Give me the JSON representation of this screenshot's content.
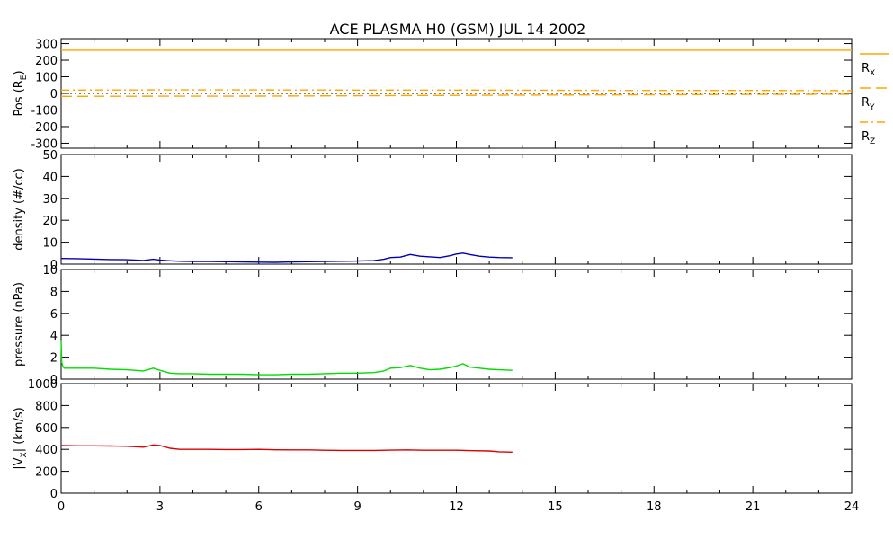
{
  "chart_data": {
    "title": "ACE PLASMA H0 (GSM)   JUL 14 2002",
    "type": "line",
    "x_axis": {
      "range": [
        0,
        24
      ],
      "ticks": [
        0,
        3,
        6,
        9,
        12,
        15,
        18,
        21,
        24
      ],
      "tick_labels": [
        "0",
        "3",
        "6",
        "9",
        "12",
        "15",
        "18",
        "21",
        "24"
      ],
      "minor_step": 1
    },
    "panels": [
      {
        "id": "pos",
        "ylabel": "Pos (R",
        "ylabel_sub": "E",
        "ylabel_end": ")",
        "ylim": [
          -330,
          330
        ],
        "yticks": [
          -300,
          -200,
          -100,
          0,
          100,
          200,
          300
        ],
        "ytick_labels": [
          "-300",
          "-200",
          "-100",
          "0",
          "100",
          "200",
          "300"
        ],
        "zero_line": true,
        "series": [
          {
            "name": "R",
            "sub": "X",
            "color": "#FFA500",
            "dash": "solid",
            "x": [
              0,
              24
            ],
            "y": [
              260,
              260
            ]
          },
          {
            "name": "R",
            "sub": "Y",
            "color": "#FFA500",
            "dash": "long-dash",
            "x": [
              0,
              3,
              6,
              9,
              12,
              15,
              18,
              21,
              24
            ],
            "y": [
              -18,
              -17,
              -16,
              -14,
              -12,
              -10,
              -8,
              -6,
              -5
            ]
          },
          {
            "name": "R",
            "sub": "Z",
            "color": "#FFA500",
            "dash": "dash-dot",
            "x": [
              0,
              3,
              6,
              9,
              12,
              15,
              18,
              21,
              24
            ],
            "y": [
              20,
              21,
              21,
              20,
              20,
              19,
              18,
              18,
              17
            ]
          }
        ]
      },
      {
        "id": "density",
        "ylabel": "density (#/cc)",
        "ylim": [
          0,
          50
        ],
        "yticks": [
          0,
          10,
          20,
          30,
          40,
          50
        ],
        "ytick_labels": [
          "0",
          "10",
          "20",
          "30",
          "40",
          "50"
        ],
        "series": [
          {
            "color": "#0000B0",
            "x": [
              0,
              0.5,
              1,
              1.5,
              2,
              2.5,
              2.8,
              3,
              3.3,
              3.6,
              4,
              4.5,
              5,
              5.5,
              6,
              6.5,
              7,
              7.5,
              8,
              8.5,
              9,
              9.5,
              9.8,
              10,
              10.3,
              10.6,
              10.9,
              11.2,
              11.5,
              11.8,
              12,
              12.2,
              12.4,
              12.7,
              13,
              13.3,
              13.7
            ],
            "y": [
              2.6,
              2.5,
              2.3,
              2.1,
              2.0,
              1.7,
              2.2,
              1.8,
              1.5,
              1.3,
              1.2,
              1.2,
              1.1,
              1.0,
              0.9,
              0.8,
              1.0,
              1.1,
              1.2,
              1.3,
              1.4,
              1.6,
              2.2,
              3.0,
              3.2,
              4.4,
              3.6,
              3.3,
              3.0,
              3.8,
              4.6,
              5.0,
              4.4,
              3.6,
              3.2,
              3.0,
              2.9
            ]
          }
        ]
      },
      {
        "id": "pressure",
        "ylabel": "pressure (nPa)",
        "ylim": [
          0,
          10
        ],
        "yticks": [
          0,
          2,
          4,
          6,
          8,
          10
        ],
        "ytick_labels": [
          "0",
          "2",
          "4",
          "6",
          "8",
          "10"
        ],
        "series": [
          {
            "color": "#00DD00",
            "x": [
              0,
              0.02,
              0.06,
              0.1,
              0.5,
              1,
              1.5,
              2,
              2.5,
              2.8,
              3,
              3.3,
              3.6,
              4,
              4.5,
              5,
              5.5,
              6,
              6.5,
              7,
              7.5,
              8,
              8.5,
              9,
              9.5,
              9.8,
              10,
              10.3,
              10.6,
              10.9,
              11.2,
              11.5,
              11.8,
              12,
              12.2,
              12.4,
              12.7,
              13,
              13.3,
              13.7
            ],
            "y": [
              3.5,
              1.5,
              1.1,
              1.0,
              1.0,
              1.0,
              0.9,
              0.85,
              0.75,
              1.0,
              0.8,
              0.55,
              0.5,
              0.5,
              0.45,
              0.45,
              0.45,
              0.4,
              0.4,
              0.45,
              0.45,
              0.5,
              0.55,
              0.55,
              0.6,
              0.75,
              1.0,
              1.05,
              1.25,
              1.0,
              0.85,
              0.9,
              1.05,
              1.2,
              1.4,
              1.1,
              1.0,
              0.9,
              0.85,
              0.8
            ]
          }
        ]
      },
      {
        "id": "vx",
        "ylabel": "|V",
        "ylabel_sub": "X",
        "ylabel_end": "| (km/s)",
        "ylim": [
          0,
          1000
        ],
        "yticks": [
          0,
          200,
          400,
          600,
          800,
          1000
        ],
        "ytick_labels": [
          "0",
          "200",
          "400",
          "600",
          "800",
          "1000"
        ],
        "series": [
          {
            "color": "#DD0000",
            "x": [
              0,
              0.5,
              1,
              1.5,
              2,
              2.5,
              2.8,
              3,
              3.3,
              3.6,
              4,
              4.5,
              5,
              5.5,
              6,
              6.5,
              7,
              7.5,
              8,
              8.5,
              9,
              9.5,
              10,
              10.5,
              11,
              11.5,
              12,
              12.5,
              13,
              13.3,
              13.7
            ],
            "y": [
              435,
              432,
              432,
              430,
              428,
              420,
              440,
              435,
              410,
              400,
              400,
              400,
              398,
              398,
              400,
              396,
              395,
              395,
              392,
              390,
              390,
              390,
              393,
              395,
              392,
              392,
              392,
              388,
              385,
              378,
              375
            ]
          }
        ]
      }
    ]
  }
}
